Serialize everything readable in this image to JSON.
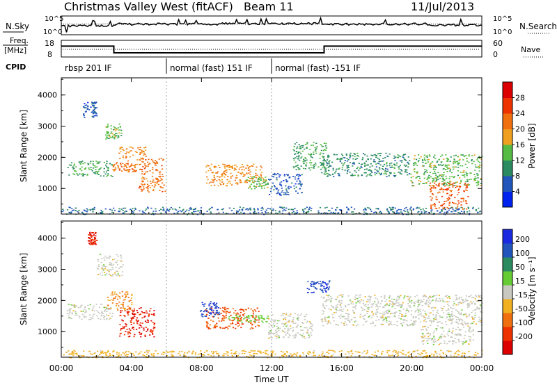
{
  "header": {
    "station": "Christmas Valley West (fitACF)",
    "beam": "Beam 11",
    "date": "11/Jul/2013"
  },
  "top_panels": {
    "nsky_label": "N.Sky",
    "nsky_scale_top": "10^5",
    "nsky_scale_bottom": "10^0",
    "nsearch_label": "N.Search",
    "freq_label_1": "Freq.",
    "freq_label_2": "[MHz]",
    "freq_ticks": [
      "18",
      "8"
    ],
    "nave_ticks": [
      "60",
      "0"
    ],
    "nave_label": "Nave",
    "cpid_label": "CPID",
    "cpid_segments": [
      {
        "label": "rbsp 201 IF",
        "start": 0,
        "end": 6
      },
      {
        "label": "normal (fast) 151 IF",
        "start": 6,
        "end": 12
      },
      {
        "label": "normal (fast) -151 IF",
        "start": 12,
        "end": 24
      }
    ],
    "freq_series": [
      {
        "start": 0,
        "end": 3,
        "level": 14.5
      },
      {
        "start": 3,
        "end": 15,
        "level": 10.5
      },
      {
        "start": 15,
        "end": 24,
        "level": 14.5
      }
    ]
  },
  "axes": {
    "x_label": "Time UT",
    "x_ticks": [
      "00:00",
      "04:00",
      "08:00",
      "12:00",
      "16:00",
      "20:00",
      "00:00"
    ],
    "x_tick_hours": [
      0,
      4,
      8,
      12,
      16,
      20,
      24
    ],
    "x_range_hours": [
      0,
      24
    ],
    "y_label": "Slant Range [km]",
    "y_ticks": [
      "1000",
      "2000",
      "3000",
      "4000"
    ],
    "y_tick_values": [
      1000,
      2000,
      3000,
      4000
    ],
    "y_range_km": [
      180,
      4550
    ]
  },
  "power_colorbar": {
    "label": "Power [dB]",
    "ticks": [
      "4",
      "8",
      "12",
      "16",
      "20",
      "24",
      "28"
    ],
    "colors": [
      "#0022ee",
      "#2255bb",
      "#2a8a60",
      "#55bb44",
      "#f0a020",
      "#f07010",
      "#ee3300",
      "#dd0000"
    ]
  },
  "velocity_colorbar": {
    "label": "Velocity [m s⁻¹]",
    "ticks": [
      "200",
      "100",
      "50",
      "15",
      "-15",
      "-50",
      "-100",
      "-200"
    ],
    "colors": [
      "#1a2ae0",
      "#2255bb",
      "#2a8a60",
      "#66cc33",
      "#c8c8c0",
      "#f0b020",
      "#f07010",
      "#ee3300",
      "#dd0000"
    ]
  },
  "chart_data": {
    "type": "heatmap",
    "title": "Christmas Valley West (fitACF) Beam 11 11/Jul/2013",
    "xlabel": "Time UT",
    "ylabel": "Slant Range [km]",
    "x_unit": "hours UT",
    "y_unit": "km",
    "xlim": [
      0,
      24
    ],
    "ylim": [
      180,
      4550
    ],
    "panels": [
      {
        "name": "Power [dB]",
        "regions": [
          {
            "t": [
              0.3,
              2.9
            ],
            "r": [
              1400,
              1900
            ],
            "value": 12
          },
          {
            "t": [
              2.9,
              4.3
            ],
            "r": [
              1550,
              1850
            ],
            "value": 22
          },
          {
            "t": [
              3.2,
              4.8
            ],
            "r": [
              1900,
              2350
            ],
            "value": 20
          },
          {
            "t": [
              4.4,
              5.9
            ],
            "r": [
              900,
              2000
            ],
            "value": 22
          },
          {
            "t": [
              2.5,
              3.4
            ],
            "r": [
              2600,
              3100
            ],
            "value": 14
          },
          {
            "t": [
              1.2,
              2.0
            ],
            "r": [
              3300,
              3800
            ],
            "value": 6
          },
          {
            "t": [
              8.2,
              11.4
            ],
            "r": [
              1100,
              1800
            ],
            "value": 20
          },
          {
            "t": [
              10.5,
              11.8
            ],
            "r": [
              1000,
              1400
            ],
            "value": 14
          },
          {
            "t": [
              11.8,
              13.7
            ],
            "r": [
              800,
              1500
            ],
            "value": 6
          },
          {
            "t": [
              13.2,
              15.1
            ],
            "r": [
              1600,
              2500
            ],
            "value": 12
          },
          {
            "t": [
              14.8,
              19.9
            ],
            "r": [
              1400,
              2150
            ],
            "value": 10
          },
          {
            "t": [
              19.9,
              24.0
            ],
            "r": [
              1100,
              2100
            ],
            "value": 14
          },
          {
            "t": [
              21.0,
              23.2
            ],
            "r": [
              350,
              1200
            ],
            "value": 24
          },
          {
            "t": [
              0.0,
              24.0
            ],
            "r": [
              180,
              420
            ],
            "value": 8
          }
        ]
      },
      {
        "name": "Velocity [m s-1]",
        "regions": [
          {
            "t": [
              0.3,
              2.9
            ],
            "r": [
              1400,
              1900
            ],
            "value": 0
          },
          {
            "t": [
              3.3,
              5.3
            ],
            "r": [
              850,
              1800
            ],
            "value": -200
          },
          {
            "t": [
              2.6,
              4.0
            ],
            "r": [
              1700,
              2300
            ],
            "value": -50
          },
          {
            "t": [
              2.0,
              3.5
            ],
            "r": [
              2800,
              3500
            ],
            "value": 0
          },
          {
            "t": [
              1.5,
              2.0
            ],
            "r": [
              3800,
              4200
            ],
            "value": -200
          },
          {
            "t": [
              8.2,
              11.3
            ],
            "r": [
              1100,
              1800
            ],
            "value": -100
          },
          {
            "t": [
              7.9,
              9.0
            ],
            "r": [
              1500,
              2000
            ],
            "value": 200
          },
          {
            "t": [
              9.5,
              11.8
            ],
            "r": [
              1300,
              1550
            ],
            "value": 30
          },
          {
            "t": [
              11.8,
              14.3
            ],
            "r": [
              800,
              1600
            ],
            "value": 0
          },
          {
            "t": [
              14.0,
              15.3
            ],
            "r": [
              2250,
              2650
            ],
            "value": 200
          },
          {
            "t": [
              14.8,
              24.0
            ],
            "r": [
              1200,
              2200
            ],
            "value": 0
          },
          {
            "t": [
              20.5,
              23.5
            ],
            "r": [
              600,
              1200
            ],
            "value": 0
          },
          {
            "t": [
              0.0,
              24.0
            ],
            "r": [
              180,
              420
            ],
            "value": -30
          }
        ]
      }
    ]
  }
}
